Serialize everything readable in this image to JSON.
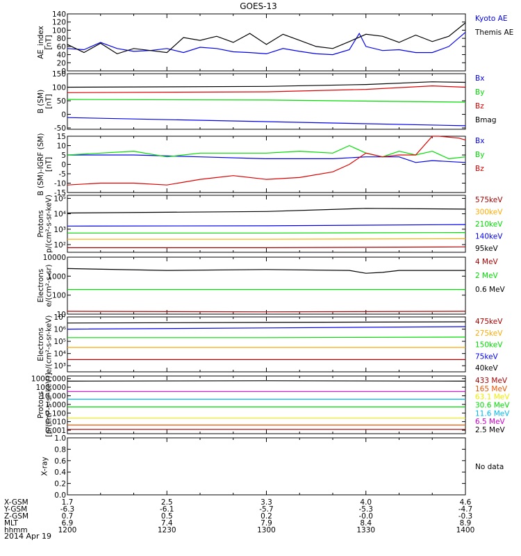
{
  "title": "GOES-13",
  "date_label": "2014 Apr 19",
  "colors": {
    "black": "#000000",
    "blue": "#0000ee",
    "red": "#dd0000",
    "green": "#00dd00",
    "orange": "#ffaa00",
    "darkred": "#aa0000",
    "cyan": "#00bbee",
    "yellow": "#eeee00",
    "purple": "#cc00cc",
    "darkorange": "#ee5500"
  },
  "time_axis": {
    "rows": [
      {
        "label": "X-GSM",
        "values": [
          "1.7",
          "2.5",
          "3.3",
          "4.0",
          "4.6"
        ]
      },
      {
        "label": "Y-GSM",
        "values": [
          "-6.3",
          "-6.1",
          "-5.7",
          "-5.3",
          "-4.7"
        ]
      },
      {
        "label": "Z-GSM",
        "values": [
          "0.7",
          "0.5",
          "0.2",
          "-0.0",
          "-0.3"
        ]
      },
      {
        "label": "MLT",
        "values": [
          "6.9",
          "7.4",
          "7.9",
          "8.4",
          "8.9"
        ]
      },
      {
        "label": "hhmm",
        "values": [
          "1200",
          "1230",
          "1300",
          "1330",
          "1400"
        ]
      }
    ]
  },
  "chart_data": [
    {
      "type": "line",
      "ylabel": [
        "AE_index",
        "[nT]"
      ],
      "scale": "linear",
      "ylim": [
        0,
        140
      ],
      "ticks": [
        {
          "v": 0,
          "l": "0"
        },
        {
          "v": 20,
          "l": "20"
        },
        {
          "v": 40,
          "l": "40"
        },
        {
          "v": 60,
          "l": "60"
        },
        {
          "v": 80,
          "l": "80"
        },
        {
          "v": 100,
          "l": "100"
        },
        {
          "v": 120,
          "l": "120"
        },
        {
          "v": 140,
          "l": "140"
        }
      ],
      "legend": [
        {
          "text": "Kyoto AE",
          "color": "blue"
        },
        {
          "text": "Themis AE",
          "color": "black"
        }
      ],
      "series": [
        {
          "name": "Kyoto AE",
          "color": "blue",
          "x": [
            0,
            5,
            10,
            15,
            20,
            25,
            30,
            35,
            40,
            45,
            50,
            55,
            60,
            65,
            70,
            75,
            80,
            85,
            88,
            90,
            95,
            100,
            105,
            110,
            115,
            120
          ],
          "y": [
            55,
            52,
            70,
            55,
            48,
            50,
            55,
            45,
            58,
            55,
            47,
            45,
            42,
            55,
            48,
            42,
            40,
            52,
            92,
            60,
            50,
            52,
            45,
            45,
            60,
            95
          ]
        },
        {
          "name": "Themis AE",
          "color": "black",
          "x": [
            0,
            5,
            10,
            15,
            20,
            25,
            30,
            35,
            40,
            45,
            50,
            55,
            60,
            65,
            70,
            75,
            80,
            85,
            90,
            95,
            100,
            105,
            110,
            115,
            120
          ],
          "y": [
            65,
            45,
            68,
            42,
            55,
            50,
            45,
            82,
            75,
            85,
            70,
            92,
            65,
            90,
            75,
            60,
            55,
            72,
            90,
            85,
            70,
            88,
            72,
            85,
            118
          ]
        }
      ]
    },
    {
      "type": "line",
      "ylabel": [
        "B (SM)",
        "[nT]"
      ],
      "scale": "linear",
      "ylim": [
        -55,
        150
      ],
      "ticks": [
        {
          "v": -50,
          "l": "-50"
        },
        {
          "v": 0,
          "l": "0"
        },
        {
          "v": 50,
          "l": "50"
        },
        {
          "v": 100,
          "l": "100"
        },
        {
          "v": 150,
          "l": "150"
        }
      ],
      "legend": [
        {
          "text": "Bx",
          "color": "blue"
        },
        {
          "text": "By",
          "color": "green"
        },
        {
          "text": "Bz",
          "color": "red"
        },
        {
          "text": "Bmag",
          "color": "black"
        }
      ],
      "series": [
        {
          "name": "Bx",
          "color": "blue",
          "x": [
            0,
            120
          ],
          "y": [
            -12,
            -42
          ]
        },
        {
          "name": "By",
          "color": "green",
          "x": [
            0,
            60,
            120
          ],
          "y": [
            55,
            53,
            45
          ]
        },
        {
          "name": "Bz",
          "color": "red",
          "x": [
            0,
            60,
            90,
            110,
            120
          ],
          "y": [
            80,
            83,
            92,
            105,
            100
          ]
        },
        {
          "name": "Bmag",
          "color": "black",
          "x": [
            0,
            60,
            90,
            110,
            120
          ],
          "y": [
            100,
            103,
            110,
            120,
            118
          ]
        }
      ]
    },
    {
      "type": "line",
      "ylabel": [
        "B (SM)-IGRF (SM)",
        "[nT]"
      ],
      "scale": "linear",
      "ylim": [
        -15,
        15
      ],
      "ticks": [
        {
          "v": -15,
          "l": "-15"
        },
        {
          "v": -10,
          "l": "-10"
        },
        {
          "v": -5,
          "l": "-5"
        },
        {
          "v": 0,
          "l": "0"
        },
        {
          "v": 5,
          "l": "5"
        },
        {
          "v": 10,
          "l": "10"
        },
        {
          "v": 15,
          "l": "15"
        }
      ],
      "legend": [
        {
          "text": "Bx",
          "color": "blue"
        },
        {
          "text": "By",
          "color": "green"
        },
        {
          "text": "Bz",
          "color": "red"
        }
      ],
      "series": [
        {
          "name": "Bx",
          "color": "blue",
          "x": [
            0,
            20,
            40,
            60,
            80,
            90,
            100,
            105,
            110,
            120
          ],
          "y": [
            5,
            5,
            4,
            3,
            3,
            4,
            4,
            1,
            2,
            1
          ]
        },
        {
          "name": "By",
          "color": "green",
          "x": [
            0,
            10,
            20,
            30,
            40,
            50,
            60,
            70,
            80,
            85,
            90,
            95,
            100,
            105,
            110,
            115,
            120
          ],
          "y": [
            5,
            6,
            7,
            4,
            6,
            6,
            6,
            7,
            6,
            10,
            6,
            4,
            7,
            5,
            7,
            3,
            4
          ]
        },
        {
          "name": "Bz",
          "color": "red",
          "x": [
            0,
            10,
            20,
            30,
            40,
            50,
            60,
            70,
            80,
            85,
            90,
            95,
            100,
            105,
            110,
            112,
            118,
            120
          ],
          "y": [
            -11,
            -10,
            -10,
            -11,
            -8,
            -6,
            -8,
            -7,
            -4,
            0,
            6,
            4,
            5,
            5,
            15,
            15,
            14,
            13
          ]
        }
      ]
    },
    {
      "type": "line",
      "ylabel": [
        "Protons",
        "p/(cm²-s-sr-keV)"
      ],
      "scale": "log",
      "ylim": [
        1.5,
        5.2
      ],
      "ticks": [
        {
          "v": 2,
          "l": "10²"
        },
        {
          "v": 3,
          "l": "10³"
        },
        {
          "v": 4,
          "l": "10⁴"
        },
        {
          "v": 5,
          "l": "10⁵"
        }
      ],
      "legend": [
        {
          "text": "575keV",
          "color": "darkred"
        },
        {
          "text": "300keV",
          "color": "orange"
        },
        {
          "text": "210keV",
          "color": "green"
        },
        {
          "text": "140keV",
          "color": "blue"
        },
        {
          "text": "95keV",
          "color": "black"
        }
      ],
      "series": [
        {
          "name": "95keV",
          "color": "black",
          "x": [
            0,
            30,
            60,
            90,
            120
          ],
          "y": [
            4.05,
            4.1,
            4.15,
            4.35,
            4.3
          ]
        },
        {
          "name": "140keV",
          "color": "blue",
          "x": [
            0,
            60,
            120
          ],
          "y": [
            3.2,
            3.22,
            3.3
          ]
        },
        {
          "name": "210keV",
          "color": "green",
          "x": [
            0,
            60,
            120
          ],
          "y": [
            2.75,
            2.75,
            2.78
          ]
        },
        {
          "name": "300keV",
          "color": "orange",
          "x": [
            0,
            60,
            120
          ],
          "y": [
            2.35,
            2.35,
            2.38
          ]
        },
        {
          "name": "575keV",
          "color": "darkred",
          "x": [
            0,
            60,
            120
          ],
          "y": [
            1.8,
            1.8,
            1.85
          ]
        }
      ]
    },
    {
      "type": "line",
      "ylabel": [
        "Electrons",
        "e/(cm²-s-sr)"
      ],
      "scale": "log",
      "ylim": [
        1.0,
        4.0
      ],
      "ticks": [
        {
          "v": 1,
          "l": "10"
        },
        {
          "v": 2,
          "l": "100"
        },
        {
          "v": 3,
          "l": "1000"
        },
        {
          "v": 4,
          "l": "10000"
        }
      ],
      "legend": [
        {
          "text": "4 MeV",
          "color": "darkred"
        },
        {
          "text": "2 MeV",
          "color": "green"
        },
        {
          "text": "0.6 MeV",
          "color": "black"
        }
      ],
      "series": [
        {
          "name": "0.6 MeV",
          "color": "black",
          "x": [
            0,
            30,
            60,
            85,
            90,
            95,
            100,
            120
          ],
          "y": [
            3.4,
            3.3,
            3.35,
            3.3,
            3.15,
            3.2,
            3.3,
            3.3
          ]
        },
        {
          "name": "2 MeV",
          "color": "green",
          "x": [
            0,
            60,
            120
          ],
          "y": [
            2.3,
            2.3,
            2.3
          ]
        },
        {
          "name": "4 MeV",
          "color": "darkred",
          "x": [
            0,
            60,
            120
          ],
          "y": [
            1.15,
            1.12,
            1.15
          ]
        }
      ]
    },
    {
      "type": "line",
      "ylabel": [
        "Electrons",
        "e/(cm²-s-sr-keV)"
      ],
      "scale": "log",
      "ylim": [
        2.5,
        7.0
      ],
      "ticks": [
        {
          "v": 3,
          "l": "10³"
        },
        {
          "v": 4,
          "l": "10⁴"
        },
        {
          "v": 5,
          "l": "10⁵"
        },
        {
          "v": 6,
          "l": "10⁶"
        },
        {
          "v": 7,
          "l": "10⁷"
        }
      ],
      "legend": [
        {
          "text": "475keV",
          "color": "darkred"
        },
        {
          "text": "275keV",
          "color": "orange"
        },
        {
          "text": "150keV",
          "color": "green"
        },
        {
          "text": "75keV",
          "color": "blue"
        },
        {
          "text": "40keV",
          "color": "black"
        }
      ],
      "series": [
        {
          "name": "40keV",
          "color": "black",
          "x": [
            0,
            60,
            120
          ],
          "y": [
            6.5,
            6.55,
            6.6
          ]
        },
        {
          "name": "75keV",
          "color": "blue",
          "x": [
            0,
            60,
            120
          ],
          "y": [
            6.0,
            6.1,
            6.2
          ]
        },
        {
          "name": "150keV",
          "color": "green",
          "x": [
            0,
            60,
            120
          ],
          "y": [
            5.3,
            5.3,
            5.35
          ]
        },
        {
          "name": "275keV",
          "color": "orange",
          "x": [
            0,
            60,
            120
          ],
          "y": [
            4.5,
            4.5,
            4.5
          ]
        },
        {
          "name": "475keV",
          "color": "darkred",
          "x": [
            0,
            60,
            120
          ],
          "y": [
            3.5,
            3.5,
            3.5
          ]
        }
      ]
    },
    {
      "type": "line",
      "ylabel": [
        "Protons",
        "[p/(cm²-s-sr-keV)]"
      ],
      "scale": "log",
      "ylim": [
        -3.4,
        3.3
      ],
      "ticks": [
        {
          "v": -3,
          "l": "0.001"
        },
        {
          "v": -2,
          "l": "0.010"
        },
        {
          "v": -1,
          "l": "0.100"
        },
        {
          "v": 0,
          "l": "1.000"
        },
        {
          "v": 1,
          "l": "10.000"
        },
        {
          "v": 2,
          "l": "100.000"
        },
        {
          "v": 3,
          "l": "1000.000"
        }
      ],
      "legend": [
        {
          "text": "433 MeV",
          "color": "darkred"
        },
        {
          "text": "165 MeV",
          "color": "darkorange"
        },
        {
          "text": "63.1 MeV",
          "color": "yellow"
        },
        {
          "text": "30.6 MeV",
          "color": "green"
        },
        {
          "text": "11.6 MeV",
          "color": "cyan"
        },
        {
          "text": "6.5 MeV",
          "color": "purple"
        },
        {
          "text": "2.5 MeV",
          "color": "black"
        }
      ],
      "series": [
        {
          "name": "2.5 MeV",
          "color": "black",
          "x": [
            0,
            60,
            120
          ],
          "y": [
            2.7,
            2.75,
            2.7
          ]
        },
        {
          "name": "6.5 MeV",
          "color": "purple",
          "x": [
            0,
            60,
            120
          ],
          "y": [
            1.5,
            1.5,
            1.5
          ]
        },
        {
          "name": "11.6 MeV",
          "color": "cyan",
          "x": [
            0,
            60,
            120
          ],
          "y": [
            0.6,
            0.6,
            0.6
          ]
        },
        {
          "name": "30.6 MeV",
          "color": "green",
          "x": [
            0,
            60,
            120
          ],
          "y": [
            -0.3,
            -0.3,
            -0.3
          ]
        },
        {
          "name": "63.1 MeV",
          "color": "yellow",
          "x": [
            0,
            60,
            120
          ],
          "y": [
            -1.6,
            -1.6,
            -1.6
          ]
        },
        {
          "name": "165 MeV",
          "color": "darkorange",
          "x": [
            0,
            60,
            120
          ],
          "y": [
            -2.4,
            -2.4,
            -2.4
          ]
        },
        {
          "name": "433 MeV",
          "color": "darkred",
          "x": [
            0,
            60,
            120
          ],
          "y": [
            -2.9,
            -2.9,
            -2.9
          ]
        }
      ]
    },
    {
      "type": "line",
      "ylabel": [
        "X-ray"
      ],
      "scale": "linear",
      "ylim": [
        0,
        1.0
      ],
      "ticks": [
        {
          "v": 0,
          "l": "0.0"
        },
        {
          "v": 0.2,
          "l": "0.2"
        },
        {
          "v": 0.4,
          "l": "0.4"
        },
        {
          "v": 0.6,
          "l": "0.6"
        },
        {
          "v": 0.8,
          "l": "0.8"
        },
        {
          "v": 1.0,
          "l": "1.0"
        }
      ],
      "legend": [
        {
          "text": "No data",
          "color": "black"
        }
      ],
      "series": []
    }
  ]
}
